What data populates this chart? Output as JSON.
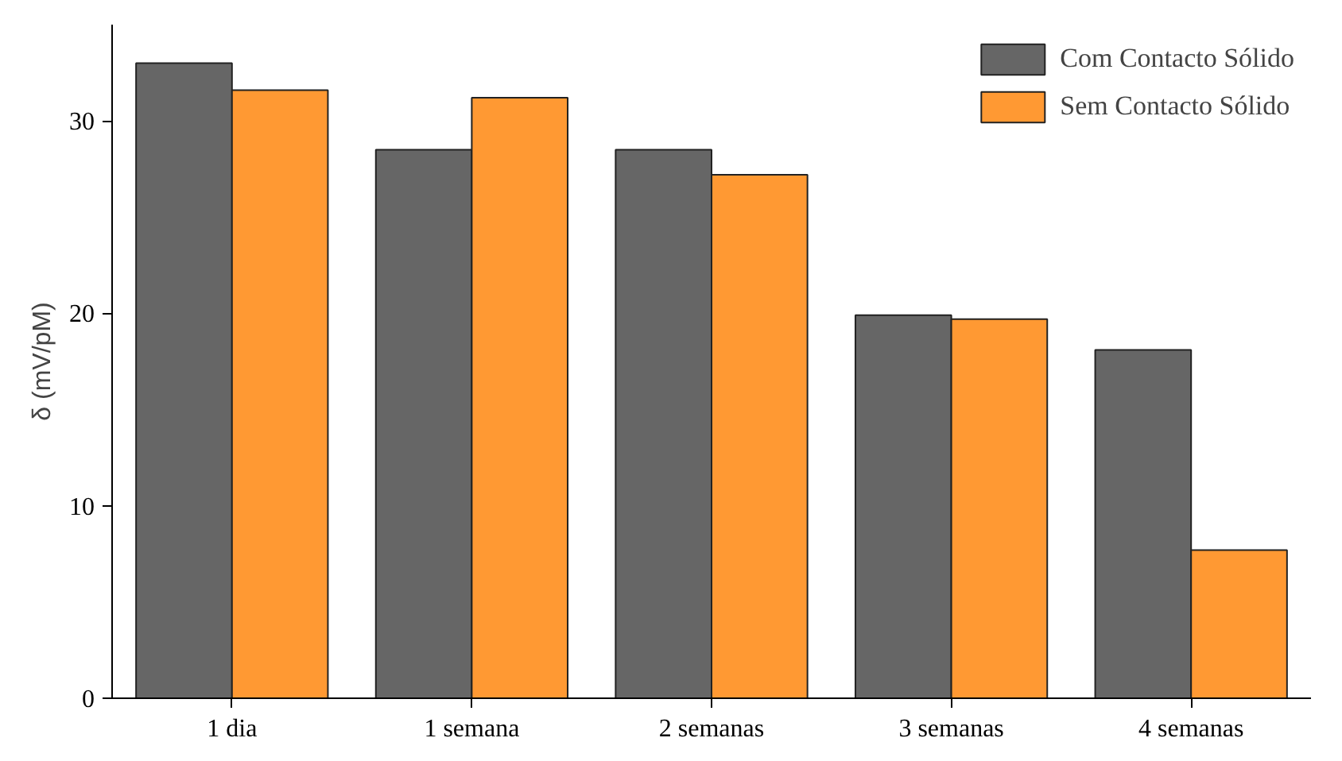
{
  "chart_data": {
    "type": "bar",
    "ylabel": "δ (mV/pM)",
    "categories": [
      "1 dia",
      "1 semana",
      "2 semanas",
      "3 semanas",
      "4 semanas"
    ],
    "series": [
      {
        "name": "Com Contacto Sólido",
        "color": "#666666",
        "values": [
          33.0,
          28.5,
          28.5,
          19.9,
          18.1
        ]
      },
      {
        "name": "Sem Contacto Sólido",
        "color": "#ff9933",
        "values": [
          31.6,
          31.2,
          27.2,
          19.7,
          7.7
        ]
      }
    ],
    "ylim": [
      0,
      35
    ],
    "yticks": [
      0,
      10,
      20,
      30
    ],
    "grid": false,
    "legend": "top right"
  }
}
